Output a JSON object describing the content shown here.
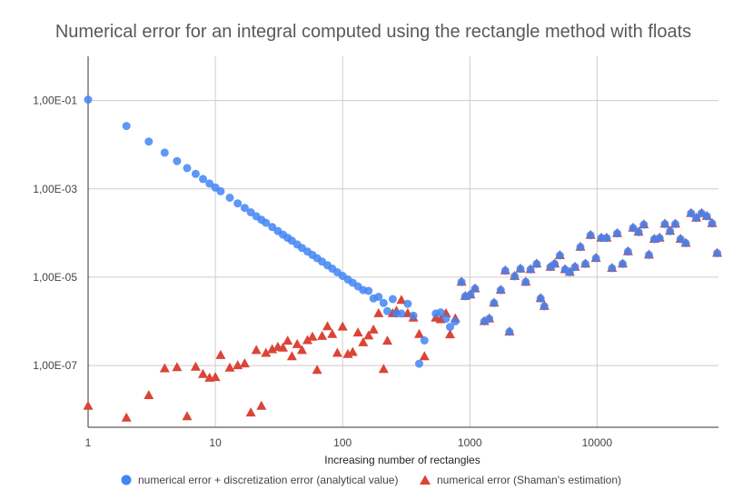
{
  "chart_data": {
    "type": "scatter",
    "title": "Numerical error for an integral computed using the rectangle method with floats",
    "xlabel": "Increasing number of rectangles",
    "ylabel": "",
    "x_scale": "log",
    "y_scale": "log",
    "xlim": [
      1,
      90000
    ],
    "ylim": [
      4e-09,
      1.0
    ],
    "x_ticks": [
      1,
      10,
      100,
      1000,
      10000
    ],
    "x_tick_labels": [
      "1",
      "10",
      "100",
      "1000",
      "10000"
    ],
    "y_ticks": [
      1e-07,
      1e-05,
      0.001,
      0.1
    ],
    "y_tick_labels": [
      "1,00E-07",
      "1,00E-05",
      "1,00E-03",
      "1,00E-01"
    ],
    "grid": true,
    "legend_position": "bottom",
    "series": [
      {
        "name": "numerical error + discretization error (analytical value)",
        "marker": "circle",
        "color": "#4285f4",
        "points": [
          [
            1,
            0.105
          ],
          [
            2,
            0.0265
          ],
          [
            3,
            0.0118
          ],
          [
            4,
            0.0066
          ],
          [
            5,
            0.00425
          ],
          [
            6,
            0.00296
          ],
          [
            7,
            0.00218
          ],
          [
            8,
            0.00167
          ],
          [
            9,
            0.00132
          ],
          [
            10,
            0.00107
          ],
          [
            11,
            0.00088
          ],
          [
            13,
            0.00063
          ],
          [
            15,
            0.00047
          ],
          [
            17,
            0.00037
          ],
          [
            19,
            0.000295
          ],
          [
            21,
            0.00024
          ],
          [
            23,
            0.0002
          ],
          [
            25,
            0.00017
          ],
          [
            28,
            0.000137
          ],
          [
            31,
            0.000111
          ],
          [
            34,
            9.2e-05
          ],
          [
            37,
            7.8e-05
          ],
          [
            40,
            6.7e-05
          ],
          [
            44,
            5.5e-05
          ],
          [
            48,
            4.6e-05
          ],
          [
            53,
            3.8e-05
          ],
          [
            58,
            3.2e-05
          ],
          [
            63,
            2.7e-05
          ],
          [
            69,
            2.25e-05
          ],
          [
            76,
            1.86e-05
          ],
          [
            83,
            1.56e-05
          ],
          [
            91,
            1.29e-05
          ],
          [
            100,
            1.07e-05
          ],
          [
            110,
            8.9e-06
          ],
          [
            120,
            7.5e-06
          ],
          [
            132,
            6.2e-06
          ],
          [
            145,
            5.1e-06
          ],
          [
            160,
            4.9e-06
          ],
          [
            175,
            3.3e-06
          ],
          [
            192,
            3.6e-06
          ],
          [
            210,
            2.6e-06
          ],
          [
            225,
            1.7e-06
          ],
          [
            248,
            3.2e-06
          ],
          [
            265,
            1.5e-06
          ],
          [
            290,
            1.5e-06
          ],
          [
            325,
            2.5e-06
          ],
          [
            360,
            1.35e-06
          ],
          [
            400,
            1.1e-07
          ],
          [
            440,
            3.7e-07
          ],
          [
            540,
            1.5e-06
          ],
          [
            590,
            1.6e-06
          ],
          [
            650,
            1.15e-06
          ],
          [
            700,
            7.5e-07
          ],
          [
            770,
            1e-06
          ],
          [
            860,
            7.8e-06
          ],
          [
            920,
            3.7e-06
          ],
          [
            1010,
            4e-06
          ],
          [
            1100,
            5.5e-06
          ],
          [
            1300,
            1e-06
          ],
          [
            1420,
            1.15e-06
          ],
          [
            1550,
            2.6e-06
          ],
          [
            1750,
            5.1e-06
          ],
          [
            1900,
            1.4e-05
          ],
          [
            2050,
            5.8e-07
          ],
          [
            2250,
            1.05e-05
          ],
          [
            2500,
            1.55e-05
          ],
          [
            2750,
            7.8e-06
          ],
          [
            3000,
            1.5e-05
          ],
          [
            3350,
            2e-05
          ],
          [
            3600,
            3.3e-06
          ],
          [
            3850,
            2.2e-06
          ],
          [
            4300,
            1.7e-05
          ],
          [
            4650,
            2e-05
          ],
          [
            5100,
            3.1e-05
          ],
          [
            5600,
            1.5e-05
          ],
          [
            6100,
            1.3e-05
          ],
          [
            6700,
            1.7e-05
          ],
          [
            7400,
            4.8e-05
          ],
          [
            8100,
            2e-05
          ],
          [
            8900,
            8.9e-05
          ],
          [
            9800,
            2.7e-05
          ],
          [
            10800,
            7.7e-05
          ],
          [
            11900,
            7.7e-05
          ],
          [
            13100,
            1.6e-05
          ],
          [
            14400,
            9.8e-05
          ],
          [
            15900,
            2e-05
          ],
          [
            17500,
            3.8e-05
          ],
          [
            19200,
            0.00013
          ],
          [
            21200,
            0.000105
          ],
          [
            23300,
            0.000155
          ],
          [
            25600,
            3.2e-05
          ],
          [
            28200,
            7.3e-05
          ],
          [
            31000,
            7.7e-05
          ],
          [
            34100,
            0.00016
          ],
          [
            37500,
            0.00011
          ],
          [
            41200,
            0.00016
          ],
          [
            45300,
            7.3e-05
          ],
          [
            49800,
            5.9e-05
          ],
          [
            54800,
            0.00028
          ],
          [
            60300,
            0.00022
          ],
          [
            66300,
            0.00028
          ],
          [
            72900,
            0.00024
          ],
          [
            80200,
            0.000165
          ],
          [
            88000,
            3.5e-05
          ]
        ]
      },
      {
        "name": "numerical error (Shaman's estimation)",
        "marker": "triangle",
        "color": "#db4437",
        "points": [
          [
            1,
            1.2e-08
          ],
          [
            2,
            6.5e-09
          ],
          [
            3,
            2.1e-08
          ],
          [
            4,
            8.5e-08
          ],
          [
            5,
            9e-08
          ],
          [
            6,
            7e-09
          ],
          [
            7,
            9.2e-08
          ],
          [
            8,
            6.3e-08
          ],
          [
            9,
            5.2e-08
          ],
          [
            10,
            5.4e-08
          ],
          [
            11,
            1.7e-07
          ],
          [
            13,
            8.8e-08
          ],
          [
            15,
            1e-07
          ],
          [
            17,
            1.1e-07
          ],
          [
            19,
            8.5e-09
          ],
          [
            21,
            2.2e-07
          ],
          [
            23,
            1.2e-08
          ],
          [
            25,
            1.9e-07
          ],
          [
            28,
            2.3e-07
          ],
          [
            31,
            2.6e-07
          ],
          [
            34,
            2.5e-07
          ],
          [
            37,
            3.6e-07
          ],
          [
            40,
            1.6e-07
          ],
          [
            44,
            3e-07
          ],
          [
            48,
            2.2e-07
          ],
          [
            53,
            3.7e-07
          ],
          [
            58,
            4.4e-07
          ],
          [
            63,
            7.8e-08
          ],
          [
            69,
            4.6e-07
          ],
          [
            76,
            7.6e-07
          ],
          [
            83,
            5.1e-07
          ],
          [
            91,
            1.9e-07
          ],
          [
            100,
            7.5e-07
          ],
          [
            110,
            1.8e-07
          ],
          [
            120,
            2e-07
          ],
          [
            132,
            5.5e-07
          ],
          [
            145,
            3.3e-07
          ],
          [
            160,
            4.7e-07
          ],
          [
            175,
            6.4e-07
          ],
          [
            192,
            1.5e-06
          ],
          [
            210,
            8.2e-08
          ],
          [
            225,
            3.6e-07
          ],
          [
            248,
            1.5e-06
          ],
          [
            265,
            1.7e-06
          ],
          [
            290,
            3e-06
          ],
          [
            325,
            1.5e-06
          ],
          [
            360,
            1.2e-06
          ],
          [
            400,
            5.1e-07
          ],
          [
            440,
            1.6e-07
          ],
          [
            540,
            1.2e-06
          ],
          [
            590,
            1.1e-06
          ],
          [
            650,
            1.5e-06
          ],
          [
            700,
            5e-07
          ],
          [
            770,
            1.15e-06
          ],
          [
            860,
            7.8e-06
          ],
          [
            920,
            3.7e-06
          ],
          [
            1010,
            4e-06
          ],
          [
            1100,
            5.5e-06
          ],
          [
            1300,
            1e-06
          ],
          [
            1420,
            1.15e-06
          ],
          [
            1550,
            2.6e-06
          ],
          [
            1750,
            5.1e-06
          ],
          [
            1900,
            1.4e-05
          ],
          [
            2050,
            5.8e-07
          ],
          [
            2250,
            1.05e-05
          ],
          [
            2500,
            1.55e-05
          ],
          [
            2750,
            7.8e-06
          ],
          [
            3000,
            1.5e-05
          ],
          [
            3350,
            2e-05
          ],
          [
            3600,
            3.3e-06
          ],
          [
            3850,
            2.2e-06
          ],
          [
            4300,
            1.7e-05
          ],
          [
            4650,
            2e-05
          ],
          [
            5100,
            3.1e-05
          ],
          [
            5600,
            1.5e-05
          ],
          [
            6100,
            1.3e-05
          ],
          [
            6700,
            1.7e-05
          ],
          [
            7400,
            4.8e-05
          ],
          [
            8100,
            2e-05
          ],
          [
            8900,
            8.9e-05
          ],
          [
            9800,
            2.7e-05
          ],
          [
            10800,
            7.7e-05
          ],
          [
            11900,
            7.7e-05
          ],
          [
            13100,
            1.6e-05
          ],
          [
            14400,
            9.8e-05
          ],
          [
            15900,
            2e-05
          ],
          [
            17500,
            3.8e-05
          ],
          [
            19200,
            0.00013
          ],
          [
            21200,
            0.000105
          ],
          [
            23300,
            0.000155
          ],
          [
            25600,
            3.2e-05
          ],
          [
            28200,
            7.3e-05
          ],
          [
            31000,
            7.7e-05
          ],
          [
            34100,
            0.00016
          ],
          [
            37500,
            0.00011
          ],
          [
            41200,
            0.00016
          ],
          [
            45300,
            7.3e-05
          ],
          [
            49800,
            5.9e-05
          ],
          [
            54800,
            0.00028
          ],
          [
            60300,
            0.00022
          ],
          [
            66300,
            0.00028
          ],
          [
            72900,
            0.00024
          ],
          [
            80200,
            0.000165
          ],
          [
            88000,
            3.5e-05
          ]
        ]
      }
    ]
  }
}
